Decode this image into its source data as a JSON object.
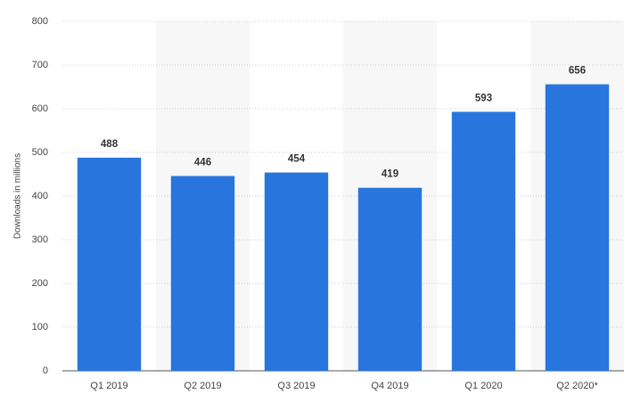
{
  "chart_data": {
    "type": "bar",
    "y_label": "Downloads in millions",
    "categories": [
      "Q1 2019",
      "Q2 2019",
      "Q3 2019",
      "Q4 2019",
      "Q1 2020",
      "Q2 2020*"
    ],
    "values": [
      488,
      446,
      454,
      419,
      593,
      656
    ],
    "color": "#2876dd",
    "ylim": [
      0,
      800
    ],
    "yticks": [
      0,
      100,
      200,
      300,
      400,
      500,
      600,
      700,
      800
    ],
    "grid": true
  }
}
